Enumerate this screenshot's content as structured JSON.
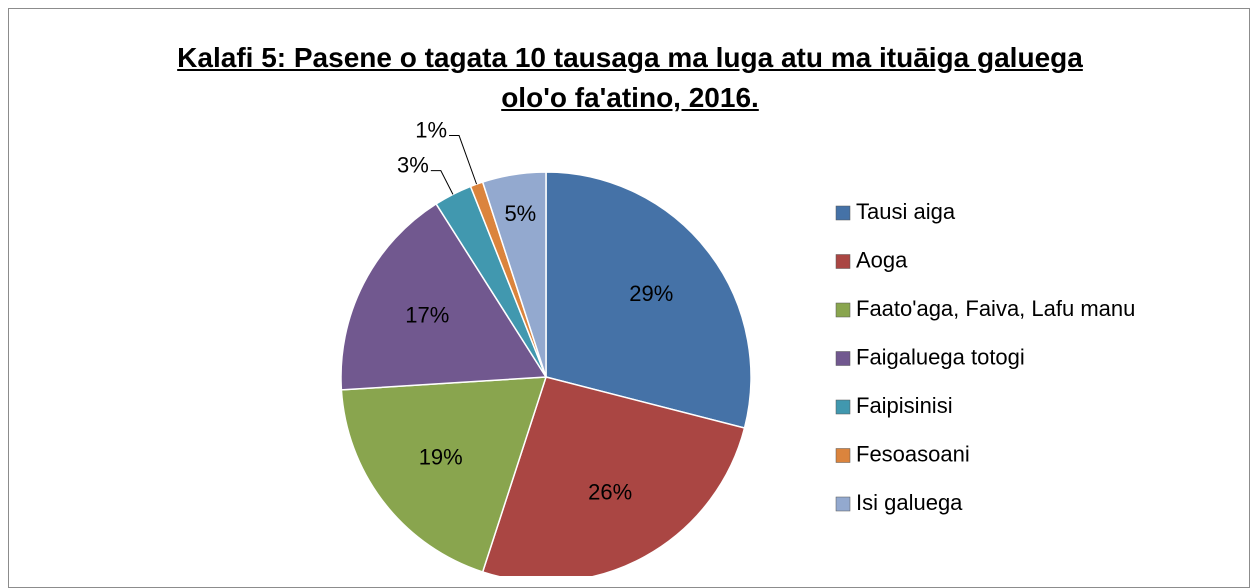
{
  "chart_data": {
    "type": "pie",
    "title": "Kalafi 5: Pasene o tagata 10 tausaga ma luga atu ma ituāiga galuega olo'o fa'atino, 2016.",
    "categories": [
      "Tausi aiga",
      "Aoga",
      "Faato'aga, Faiva, Lafu manu",
      "Faigaluega totogi",
      "Faipisinisi",
      "Fesoasoani",
      "Isi galuega"
    ],
    "values": [
      29,
      26,
      19,
      17,
      3,
      1,
      5
    ],
    "value_labels": [
      "29%",
      "26%",
      "19%",
      "17%",
      "3%",
      "1%",
      "5%"
    ],
    "colors": [
      "#4572a7",
      "#aa4643",
      "#89a54e",
      "#71588f",
      "#4198af",
      "#db843d",
      "#93a9cf"
    ],
    "legend": "right"
  }
}
